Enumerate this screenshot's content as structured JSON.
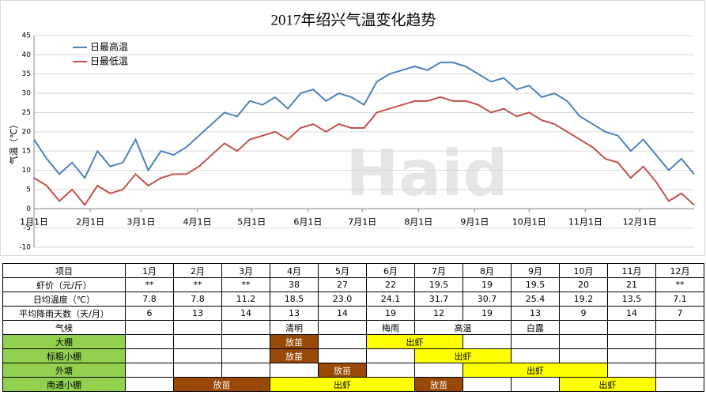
{
  "chart_data": {
    "type": "line",
    "title": "2017年绍兴气温变化趋势",
    "y_label": "气温（℃）",
    "watermark": "Haid",
    "x": [
      1,
      8,
      15,
      22,
      29,
      36,
      43,
      50,
      57,
      64,
      71,
      78,
      85,
      92,
      99,
      106,
      113,
      120,
      127,
      134,
      141,
      148,
      155,
      162,
      169,
      176,
      183,
      190,
      197,
      204,
      211,
      218,
      225,
      232,
      239,
      246,
      253,
      260,
      267,
      274,
      281,
      288,
      295,
      302,
      309,
      316,
      323,
      330,
      337,
      344,
      351,
      358,
      365
    ],
    "series": [
      {
        "name": "日最高温",
        "color": "#4f81bd",
        "values": [
          18,
          13,
          9,
          12,
          8,
          15,
          11,
          12,
          18,
          10,
          15,
          14,
          16,
          19,
          22,
          25,
          24,
          28,
          27,
          29,
          26,
          30,
          31,
          28,
          30,
          29,
          27,
          33,
          35,
          36,
          37,
          36,
          38,
          38,
          37,
          35,
          33,
          34,
          31,
          32,
          29,
          30,
          28,
          24,
          22,
          20,
          19,
          15,
          18,
          14,
          10,
          13,
          9
        ]
      },
      {
        "name": "日最低温",
        "color": "#c0504d",
        "values": [
          8,
          6,
          2,
          5,
          1,
          6,
          4,
          5,
          9,
          6,
          8,
          9,
          9,
          11,
          14,
          17,
          15,
          18,
          19,
          20,
          18,
          21,
          22,
          20,
          22,
          21,
          21,
          25,
          26,
          27,
          28,
          28,
          29,
          28,
          28,
          27,
          25,
          26,
          24,
          25,
          23,
          22,
          20,
          18,
          16,
          13,
          12,
          8,
          11,
          7,
          2,
          4,
          1
        ]
      }
    ],
    "xlim": [
      1,
      365
    ],
    "xticks": [
      {
        "value": 1,
        "label": "1月1日"
      },
      {
        "value": 32,
        "label": "2月1日"
      },
      {
        "value": 60,
        "label": "3月1日"
      },
      {
        "value": 91,
        "label": "4月1日"
      },
      {
        "value": 121,
        "label": "5月1日"
      },
      {
        "value": 152,
        "label": "6月1日"
      },
      {
        "value": 182,
        "label": "7月1日"
      },
      {
        "value": 213,
        "label": "8月1日"
      },
      {
        "value": 244,
        "label": "9月1日"
      },
      {
        "value": 274,
        "label": "10月1日"
      },
      {
        "value": 305,
        "label": "11月1日"
      },
      {
        "value": 335,
        "label": "12月1日"
      }
    ],
    "ylim": [
      -10,
      45
    ],
    "yticks": [
      -10,
      -5,
      0,
      5,
      10,
      15,
      20,
      25,
      30,
      35,
      40,
      45
    ],
    "grid": true
  },
  "table": {
    "header": [
      "项目",
      "1月",
      "2月",
      "3月",
      "4月",
      "5月",
      "6月",
      "7月",
      "8月",
      "9月",
      "10月",
      "11月",
      "12月"
    ],
    "rows": [
      [
        "虾价（元/斤）",
        "**",
        "**",
        "**",
        "38",
        "27",
        "22",
        "19.5",
        "19",
        "19.5",
        "20",
        "21",
        "**"
      ],
      [
        "日均温度（℃）",
        "7.8",
        "7.8",
        "11.2",
        "18.5",
        "23.0",
        "24.1",
        "31.7",
        "30.7",
        "25.4",
        "19.2",
        "13.5",
        "7.1"
      ],
      [
        "平均降雨天数（天/月）",
        "6",
        "13",
        "14",
        "13",
        "14",
        "19",
        "12",
        "19",
        "13",
        "9",
        "14",
        "7"
      ]
    ],
    "schedule": [
      {
        "label": "气候",
        "segments": [
          {
            "start": 4,
            "span": 1,
            "text": "清明"
          },
          {
            "start": 6,
            "span": 1,
            "text": "梅雨"
          },
          {
            "start": 7,
            "span": 2,
            "text": "高温"
          },
          {
            "start": 9,
            "span": 1,
            "text": "白露"
          }
        ]
      },
      {
        "label": "大棚",
        "color": "#92d050",
        "segments": [
          {
            "start": 4,
            "span": 1,
            "text": "放苗",
            "color": "#984807"
          },
          {
            "start": 6,
            "span": 2,
            "text": "出虾",
            "color": "#ffff00"
          }
        ]
      },
      {
        "label": "标粗小棚",
        "color": "#92d050",
        "segments": [
          {
            "start": 4,
            "span": 1,
            "text": "放苗",
            "color": "#984807"
          },
          {
            "start": 7,
            "span": 2,
            "text": "出虾",
            "color": "#ffff00"
          }
        ]
      },
      {
        "label": "外塘",
        "color": "#92d050",
        "segments": [
          {
            "start": 5,
            "span": 1,
            "text": "放苗",
            "color": "#984807"
          },
          {
            "start": 8,
            "span": 3,
            "text": "出虾",
            "color": "#ffff00"
          }
        ]
      },
      {
        "label": "南通小棚",
        "color": "#92d050",
        "segments": [
          {
            "start": 2,
            "span": 2,
            "text": "放苗",
            "color": "#984807"
          },
          {
            "start": 4,
            "span": 3,
            "text": "出虾",
            "color": "#ffff00"
          },
          {
            "start": 7,
            "span": 1,
            "text": "放苗",
            "color": "#984807"
          },
          {
            "start": 10,
            "span": 2,
            "text": "出虾",
            "color": "#ffff00"
          }
        ]
      }
    ]
  }
}
